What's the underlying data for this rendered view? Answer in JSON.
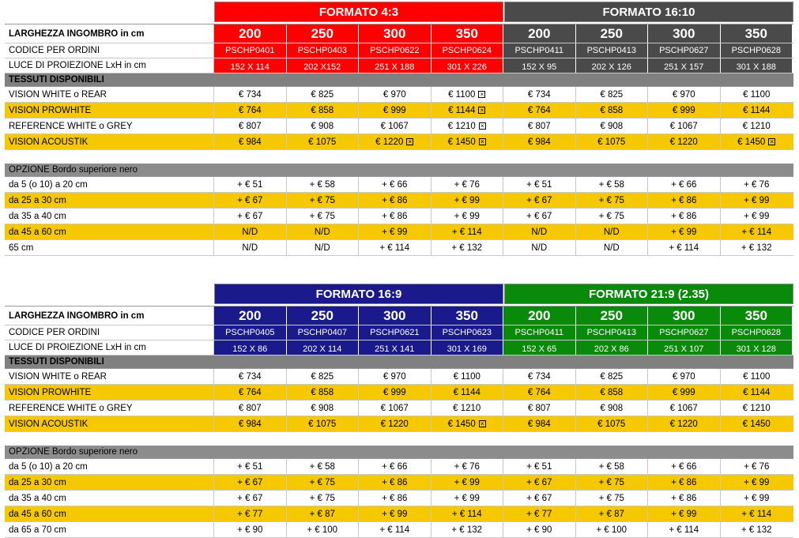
{
  "colors": {
    "red": "#ff0000",
    "dark_grey": "#4a4a4a",
    "navy": "#1a1a8c",
    "green": "#0a8a0a",
    "yellow": "#f5c800",
    "section_grey": "#808080"
  },
  "icons": {
    "marker": "x-box-icon"
  },
  "labels": {
    "width": "LARGHEZZA INGOMBRO in cm",
    "code": "CODICE PER ORDINI",
    "luce": "LUCE DI PROIEZIONE LxH in cm",
    "fabrics": "TESSUTI DISPONIBILI",
    "option": "OPZIONE Bordo superiore nero"
  },
  "blocks": [
    {
      "formats": [
        {
          "title": "FORMATO 4:3",
          "color": "#ff0000",
          "sizes": [
            "200",
            "250",
            "300",
            "350"
          ],
          "codes": [
            "PSCHP0401",
            "PSCHP0403",
            "PSCHP0622",
            "PSCHP0624"
          ],
          "luce": [
            "152 X 114",
            "202 X152",
            "251 X 188",
            "301 X 226"
          ]
        },
        {
          "title": "FORMATO 16:10",
          "color": "#4a4a4a",
          "sizes": [
            "200",
            "250",
            "300",
            "350"
          ],
          "codes": [
            "PSCHP0411",
            "PSCHP0413",
            "PSCHP0627",
            "PSCHP0628"
          ],
          "luce": [
            "152 X 95",
            "202 X 126",
            "251 X 157",
            "301 X 188"
          ]
        }
      ],
      "fabrics": [
        {
          "label": "VISION WHITE o REAR",
          "alt": false,
          "values": [
            "€ 734",
            "€ 825",
            "€ 970",
            "€ 1100",
            "€ 734",
            "€ 825",
            "€ 970",
            "€ 1100"
          ],
          "marks": [
            false,
            false,
            false,
            true,
            false,
            false,
            false,
            false
          ]
        },
        {
          "label": "VISION PROWHITE",
          "alt": true,
          "values": [
            "€ 764",
            "€ 858",
            "€ 999",
            "€ 1144",
            "€ 764",
            "€ 858",
            "€ 999",
            "€ 1144"
          ],
          "marks": [
            false,
            false,
            false,
            true,
            false,
            false,
            false,
            false
          ]
        },
        {
          "label": "REFERENCE WHITE o GREY",
          "alt": false,
          "values": [
            "€ 807",
            "€ 908",
            "€ 1067",
            "€ 1210",
            "€ 807",
            "€ 908",
            "€ 1067",
            "€ 1210"
          ],
          "marks": [
            false,
            false,
            false,
            true,
            false,
            false,
            false,
            false
          ]
        },
        {
          "label": "VISION ACOUSTIK",
          "alt": true,
          "values": [
            "€ 984",
            "€ 1075",
            "€ 1220",
            "€ 1450",
            "€ 984",
            "€ 1075",
            "€ 1220",
            "€ 1450"
          ],
          "marks": [
            false,
            false,
            true,
            true,
            false,
            false,
            false,
            true
          ]
        }
      ],
      "options": [
        {
          "label": "da 5 (o 10) a 20 cm",
          "alt": false,
          "values": [
            "+ € 51",
            "+ € 58",
            "+ € 66",
            "+ € 76",
            "+ € 51",
            "+ € 58",
            "+ € 66",
            "+ € 76"
          ]
        },
        {
          "label": "da 25 a 30 cm",
          "alt": true,
          "values": [
            "+ € 67",
            "+ € 75",
            "+ € 86",
            "+ € 99",
            "+ € 67",
            "+ € 75",
            "+ € 86",
            "+ € 99"
          ]
        },
        {
          "label": "da 35 a 40 cm",
          "alt": false,
          "values": [
            "+ € 67",
            "+ € 75",
            "+ € 86",
            "+ € 99",
            "+ € 67",
            "+ € 75",
            "+ € 86",
            "+ € 99"
          ]
        },
        {
          "label": "da 45 a 60 cm",
          "alt": true,
          "values": [
            "N/D",
            "N/D",
            "+ € 99",
            "+ € 114",
            "N/D",
            "N/D",
            "+ € 99",
            "+ € 114"
          ]
        },
        {
          "label": "65 cm",
          "alt": false,
          "values": [
            "N/D",
            "N/D",
            "+ € 114",
            "+ € 132",
            "N/D",
            "N/D",
            "+ € 114",
            "+ € 132"
          ]
        }
      ]
    },
    {
      "formats": [
        {
          "title": "FORMATO 16:9",
          "color": "#1a1a8c",
          "sizes": [
            "200",
            "250",
            "300",
            "350"
          ],
          "codes": [
            "PSCHP0405",
            "PSCHP0407",
            "PSCHP0621",
            "PSCHP0623"
          ],
          "luce": [
            "152 X 86",
            "202 X 114",
            "251 X 141",
            "301 X 169"
          ]
        },
        {
          "title": "FORMATO 21:9 (2.35)",
          "color": "#0a8a0a",
          "sizes": [
            "200",
            "250",
            "300",
            "350"
          ],
          "codes": [
            "PSCHP0411",
            "PSCHP0413",
            "PSCHP0627",
            "PSCHP0628"
          ],
          "luce": [
            "152 X 65",
            "202 X 86",
            "251 X 107",
            "301 X 128"
          ]
        }
      ],
      "fabrics": [
        {
          "label": "VISION WHITE o REAR",
          "alt": false,
          "values": [
            "€ 734",
            "€ 825",
            "€ 970",
            "€ 1100",
            "€ 734",
            "€ 825",
            "€ 970",
            "€ 1100"
          ],
          "marks": [
            false,
            false,
            false,
            false,
            false,
            false,
            false,
            false
          ]
        },
        {
          "label": "VISION PROWHITE",
          "alt": true,
          "values": [
            "€ 764",
            "€ 858",
            "€ 999",
            "€ 1144",
            "€ 764",
            "€ 858",
            "€ 999",
            "€ 1144"
          ],
          "marks": [
            false,
            false,
            false,
            false,
            false,
            false,
            false,
            false
          ]
        },
        {
          "label": "REFERENCE WHITE o GREY",
          "alt": false,
          "values": [
            "€ 807",
            "€ 908",
            "€ 1067",
            "€ 1210",
            "€ 807",
            "€ 908",
            "€ 1067",
            "€ 1210"
          ],
          "marks": [
            false,
            false,
            false,
            false,
            false,
            false,
            false,
            false
          ]
        },
        {
          "label": "VISION ACOUSTIK",
          "alt": true,
          "values": [
            "€ 984",
            "€ 1075",
            "€ 1220",
            "€ 1450",
            "€ 984",
            "€ 1075",
            "€ 1220",
            "€ 1450"
          ],
          "marks": [
            false,
            false,
            false,
            true,
            false,
            false,
            false,
            false
          ]
        }
      ],
      "options": [
        {
          "label": "da 5 (o 10) a 20 cm",
          "alt": false,
          "values": [
            "+ € 51",
            "+ € 58",
            "+ € 66",
            "+ € 76",
            "+ € 51",
            "+ € 58",
            "+ € 66",
            "+ € 76"
          ]
        },
        {
          "label": "da 25 a 30 cm",
          "alt": true,
          "values": [
            "+ € 67",
            "+ € 75",
            "+ € 86",
            "+ € 99",
            "+ € 67",
            "+ € 75",
            "+ € 86",
            "+ € 99"
          ]
        },
        {
          "label": "da 35 a 40 cm",
          "alt": false,
          "values": [
            "+ € 67",
            "+ € 75",
            "+ € 86",
            "+ € 99",
            "+ € 67",
            "+ € 75",
            "+ € 86",
            "+ € 99"
          ]
        },
        {
          "label": "da 45 a 60 cm",
          "alt": true,
          "values": [
            "+ € 77",
            "+ € 87",
            "+ € 99",
            "+ € 114",
            "+ € 77",
            "+ € 87",
            "+ € 99",
            "+ € 114"
          ]
        },
        {
          "label": "da 65 a 70 cm",
          "alt": false,
          "values": [
            "+ € 90",
            "+ € 100",
            "+ € 114",
            "+ € 132",
            "+ € 90",
            "+ € 100",
            "+ € 114",
            "+ € 132"
          ]
        }
      ]
    }
  ]
}
